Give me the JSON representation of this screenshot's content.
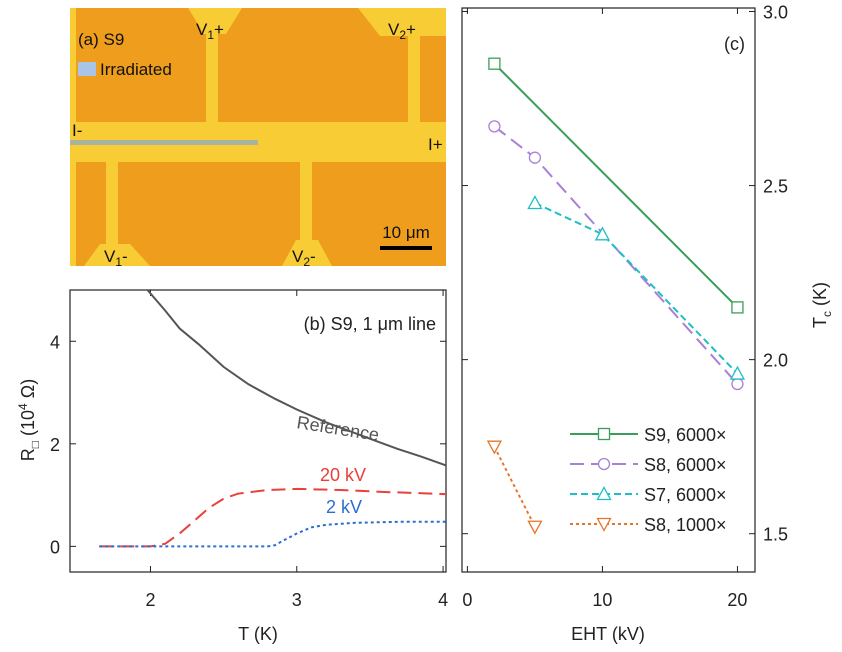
{
  "micrograph": {
    "panel_label": "(a) S9",
    "legend": "Irradiated",
    "labels": {
      "v1_top": [
        "V",
        "1",
        "+"
      ],
      "v2_top": [
        "V",
        "2",
        "+"
      ],
      "i_minus": "I-",
      "i_plus": "I+",
      "v1_bottom": [
        "V",
        "1",
        "-"
      ],
      "v2_bottom": [
        "V",
        "2",
        "-"
      ]
    },
    "scale_bar": "10 μm"
  },
  "chart_data": [
    {
      "type": "line",
      "panel_label": "(b) S9, 1 μm line",
      "xlabel": "T (K)",
      "ylabel": [
        "R",
        "□",
        " (10",
        "4",
        " Ω)"
      ],
      "xlim": [
        1.45,
        4.02
      ],
      "xticks": [
        2,
        3,
        4
      ],
      "ylim": [
        -0.5,
        5
      ],
      "yticks": [
        0,
        2,
        4
      ],
      "y_axis_side": "left",
      "series": [
        {
          "name": "Reference",
          "color": "#555555",
          "linestyle": "solid",
          "x": [
            1.98,
            2.1,
            2.2,
            2.33,
            2.5,
            2.67,
            2.85,
            3.0,
            3.2,
            3.35,
            3.5,
            3.69,
            3.85,
            4.02
          ],
          "values": [
            5.0,
            4.6,
            4.25,
            3.94,
            3.5,
            3.16,
            2.88,
            2.67,
            2.42,
            2.26,
            2.1,
            1.9,
            1.75,
            1.58
          ]
        },
        {
          "name": "20 kV",
          "color": "#e8403a",
          "linestyle": "dashed",
          "x": [
            1.65,
            1.8,
            2.0,
            2.1,
            2.2,
            2.3,
            2.4,
            2.5,
            2.6,
            2.8,
            3.0,
            3.3,
            3.6,
            4.02
          ],
          "values": [
            0,
            0,
            0,
            0.05,
            0.25,
            0.5,
            0.75,
            0.93,
            1.03,
            1.1,
            1.12,
            1.1,
            1.06,
            1.02
          ]
        },
        {
          "name": "2 kV",
          "color": "#2a6fd0",
          "linestyle": "dotted",
          "x": [
            1.65,
            2.0,
            2.5,
            2.8,
            2.85,
            2.9,
            3.0,
            3.1,
            3.2,
            3.4,
            3.7,
            4.02
          ],
          "values": [
            0,
            0,
            0,
            0,
            0.02,
            0.1,
            0.25,
            0.37,
            0.42,
            0.46,
            0.48,
            0.48
          ]
        }
      ]
    },
    {
      "type": "line",
      "panel_label": "(c)",
      "xlabel": "EHT (kV)",
      "ylabel": [
        "T",
        "c",
        " (K)"
      ],
      "xlim": [
        -0.4,
        21.3
      ],
      "xticks": [
        0,
        10,
        20
      ],
      "ylim": [
        1.39,
        3.01
      ],
      "yticks": [
        {
          "value": 1.5,
          "label": "1.5"
        },
        {
          "value": 2.0,
          "label": "2.0"
        },
        {
          "value": 2.5,
          "label": "2.5"
        },
        {
          "value": 3.0,
          "label": "3.0"
        }
      ],
      "y_axis_side": "right",
      "legend": "lower right",
      "series": [
        {
          "name": "S9, 6000×",
          "color": "#3a9e5a",
          "linestyle": "solid",
          "marker": "square",
          "x": [
            2,
            20
          ],
          "values": [
            2.85,
            2.15
          ]
        },
        {
          "name": "S8, 6000×",
          "color": "#a97fd8",
          "linestyle": "dashed",
          "marker": "circle",
          "x": [
            2,
            5,
            20
          ],
          "values": [
            2.67,
            2.58,
            1.93
          ]
        },
        {
          "name": "S7, 6000×",
          "color": "#1ac0c6",
          "linestyle": "shortdash",
          "marker": "triangle-up",
          "x": [
            5,
            10,
            20
          ],
          "values": [
            2.45,
            2.36,
            1.96
          ]
        },
        {
          "name": "S8, 1000×",
          "color": "#e8742a",
          "linestyle": "dotted",
          "marker": "triangle-down",
          "x": [
            2,
            5
          ],
          "values": [
            1.75,
            1.52
          ]
        }
      ]
    }
  ]
}
